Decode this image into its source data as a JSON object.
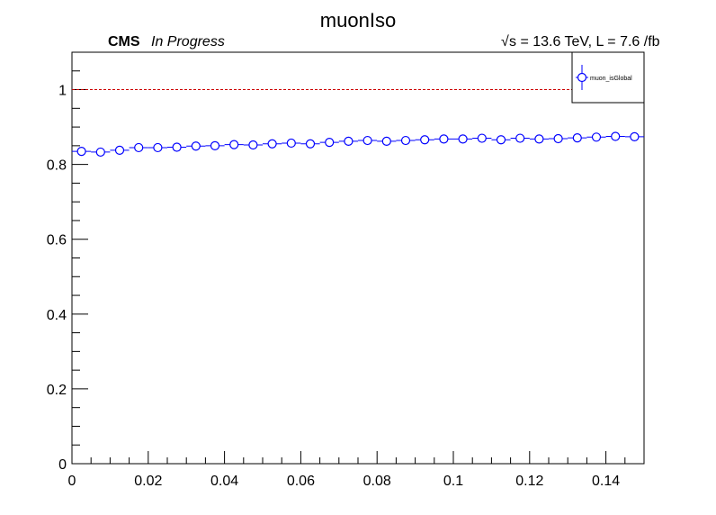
{
  "chart_data": {
    "type": "scatter",
    "title": "muonIso",
    "experiment_label": "CMS",
    "status_label": "In Progress",
    "energy_label": "s = 13.6 TeV, L = 7.6 /fb",
    "energy_sqrt_symbol": "√",
    "xlabel": "",
    "ylabel": "",
    "xlim": [
      0,
      0.15
    ],
    "ylim": [
      0,
      1.1
    ],
    "x_ticks": [
      0,
      0.02,
      0.04,
      0.06,
      0.08,
      0.1,
      0.12,
      0.14
    ],
    "x_tick_labels": [
      "0",
      "0.02",
      "0.04",
      "0.06",
      "0.08",
      "0.1",
      "0.12",
      "0.14"
    ],
    "y_ticks": [
      0,
      0.2,
      0.4,
      0.6,
      0.8,
      1
    ],
    "y_tick_labels": [
      "0",
      "0.2",
      "0.4",
      "0.6",
      "0.8",
      "1"
    ],
    "reference_line": {
      "y": 1,
      "color": "#cc0000",
      "style": "dashed"
    },
    "legend_position": "top-right",
    "grid": false,
    "series": [
      {
        "name": "muon_isGlobal",
        "color": "#0000ff",
        "marker": "open-circle",
        "bin_halfwidth": 0.0025,
        "x": [
          0.0025,
          0.0075,
          0.0125,
          0.0175,
          0.0225,
          0.0275,
          0.0325,
          0.0375,
          0.0425,
          0.0475,
          0.0525,
          0.0575,
          0.0625,
          0.0675,
          0.0725,
          0.0775,
          0.0825,
          0.0875,
          0.0925,
          0.0975,
          0.1025,
          0.1075,
          0.1125,
          0.1175,
          0.1225,
          0.1275,
          0.1325,
          0.1375,
          0.1425,
          0.1475
        ],
        "y": [
          0.835,
          0.833,
          0.838,
          0.845,
          0.845,
          0.846,
          0.849,
          0.85,
          0.853,
          0.852,
          0.855,
          0.857,
          0.855,
          0.859,
          0.862,
          0.864,
          0.862,
          0.864,
          0.866,
          0.868,
          0.868,
          0.87,
          0.866,
          0.87,
          0.868,
          0.869,
          0.871,
          0.873,
          0.875,
          0.874
        ]
      }
    ]
  }
}
